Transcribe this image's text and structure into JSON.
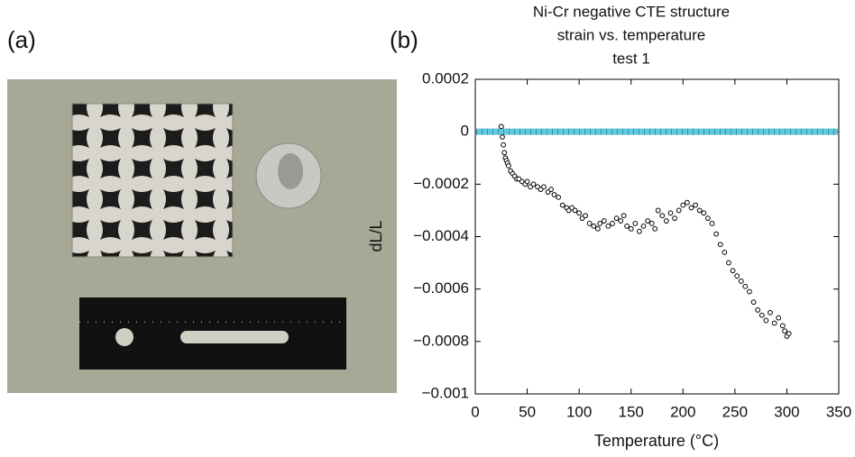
{
  "panel_labels": [
    "(a)",
    "(b)"
  ],
  "chart_data": {
    "type": "scatter",
    "title": [
      "Ni-Cr negative CTE structure",
      "strain vs. temperature",
      "test 1"
    ],
    "x_label": "Temperature (°C)",
    "y_label": "dL/L",
    "xlim": [
      0,
      350
    ],
    "xticks": [
      0,
      50,
      100,
      150,
      200,
      250,
      300,
      350
    ],
    "ylim": [
      -0.001,
      0.0002
    ],
    "yticks": [
      {
        "value": -0.001,
        "label": "−0.001"
      },
      {
        "value": -0.0008,
        "label": "−0.0008"
      },
      {
        "value": -0.0006,
        "label": "−0.0006"
      },
      {
        "value": -0.0004,
        "label": "−0.0004"
      },
      {
        "value": -0.0002,
        "label": "−0.0002"
      },
      0,
      0.0002
    ],
    "reference_line": {
      "value": 0,
      "color": "#5fc8de"
    },
    "marker_color": "#000000",
    "x": [
      25,
      26,
      27,
      28,
      29,
      30,
      31,
      32,
      34,
      36,
      38,
      40,
      42,
      45,
      48,
      50,
      53,
      56,
      60,
      63,
      66,
      70,
      73,
      76,
      80,
      84,
      88,
      90,
      93,
      96,
      100,
      103,
      106,
      110,
      114,
      118,
      120,
      124,
      128,
      132,
      136,
      140,
      143,
      146,
      150,
      154,
      158,
      162,
      166,
      170,
      173,
      176,
      180,
      184,
      188,
      192,
      196,
      200,
      204,
      208,
      212,
      216,
      220,
      224,
      228,
      232,
      236,
      240,
      244,
      248,
      252,
      256,
      260,
      264,
      268,
      272,
      276,
      280,
      284,
      288,
      292,
      296,
      298,
      300,
      302
    ],
    "values": [
      2e-05,
      -2e-05,
      -5e-05,
      -8e-05,
      -0.0001,
      -0.00011,
      -0.00012,
      -0.00013,
      -0.00015,
      -0.00016,
      -0.00017,
      -0.00018,
      -0.00018,
      -0.00019,
      -0.0002,
      -0.00019,
      -0.00021,
      -0.0002,
      -0.00021,
      -0.00022,
      -0.00021,
      -0.00023,
      -0.00022,
      -0.00024,
      -0.00025,
      -0.00028,
      -0.00029,
      -0.0003,
      -0.00029,
      -0.0003,
      -0.00031,
      -0.00033,
      -0.00032,
      -0.00035,
      -0.00036,
      -0.00037,
      -0.00035,
      -0.00034,
      -0.00036,
      -0.00035,
      -0.00033,
      -0.00034,
      -0.00032,
      -0.00036,
      -0.00037,
      -0.00035,
      -0.00038,
      -0.00036,
      -0.00034,
      -0.00035,
      -0.00037,
      -0.0003,
      -0.00032,
      -0.00034,
      -0.00031,
      -0.00033,
      -0.0003,
      -0.00028,
      -0.00027,
      -0.00029,
      -0.00028,
      -0.0003,
      -0.00031,
      -0.00033,
      -0.00035,
      -0.00039,
      -0.00043,
      -0.00046,
      -0.0005,
      -0.00053,
      -0.00055,
      -0.00057,
      -0.00059,
      -0.00061,
      -0.00065,
      -0.00068,
      -0.0007,
      -0.00072,
      -0.00069,
      -0.00073,
      -0.00071,
      -0.00074,
      -0.00076,
      -0.00078,
      -0.00077
    ]
  }
}
